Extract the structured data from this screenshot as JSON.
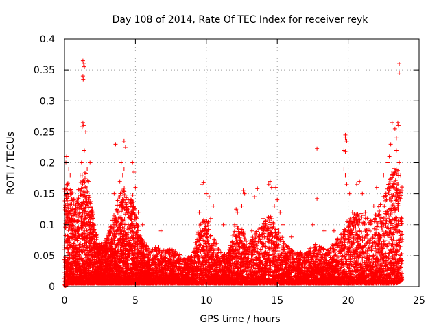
{
  "chart_data": {
    "type": "scatter",
    "title": "Day 108 of 2014, Rate Of TEC Index for receiver reyk",
    "xlabel": "GPS time / hours",
    "ylabel": "ROTI / TECUs",
    "xlim": [
      0,
      25
    ],
    "ylim": [
      0,
      0.4
    ],
    "xticks": [
      0,
      5,
      10,
      15,
      20,
      25
    ],
    "xtick_labels": [
      "0",
      "5",
      "10",
      "15",
      "20",
      "25"
    ],
    "yticks": [
      0,
      0.05,
      0.1,
      0.15,
      0.2,
      0.25,
      0.3,
      0.35,
      0.4
    ],
    "ytick_labels": [
      "0",
      "0.05",
      "0.1",
      "0.15",
      "0.2",
      "0.25",
      "0.3",
      "0.35",
      "0.4"
    ],
    "grid": true,
    "marker": "+",
    "color": "#ff0000",
    "series": [
      {
        "name": "ROTI",
        "points": [
          [
            0.1,
            0.2
          ],
          [
            0.15,
            0.21
          ],
          [
            0.3,
            0.19
          ],
          [
            0.4,
            0.18
          ],
          [
            0.5,
            0.15
          ],
          [
            1.3,
            0.365
          ],
          [
            1.35,
            0.36
          ],
          [
            1.4,
            0.355
          ],
          [
            1.3,
            0.34
          ],
          [
            1.32,
            0.335
          ],
          [
            1.3,
            0.265
          ],
          [
            1.35,
            0.26
          ],
          [
            1.25,
            0.258
          ],
          [
            1.5,
            0.25
          ],
          [
            1.4,
            0.22
          ],
          [
            1.2,
            0.2
          ],
          [
            1.6,
            0.19
          ],
          [
            1.8,
            0.2
          ],
          [
            1.1,
            0.18
          ],
          [
            1.7,
            0.17
          ],
          [
            3.6,
            0.23
          ],
          [
            4.2,
            0.235
          ],
          [
            4.3,
            0.225
          ],
          [
            4.0,
            0.2
          ],
          [
            4.2,
            0.19
          ],
          [
            4.1,
            0.18
          ],
          [
            3.9,
            0.17
          ],
          [
            4.8,
            0.2
          ],
          [
            4.9,
            0.185
          ],
          [
            5.0,
            0.16
          ],
          [
            3.5,
            0.15
          ],
          [
            4.5,
            0.14
          ],
          [
            5.2,
            0.12
          ],
          [
            5.5,
            0.1
          ],
          [
            6.8,
            0.09
          ],
          [
            9.8,
            0.168
          ],
          [
            9.7,
            0.165
          ],
          [
            10.2,
            0.145
          ],
          [
            10.0,
            0.15
          ],
          [
            9.5,
            0.12
          ],
          [
            10.5,
            0.13
          ],
          [
            10.3,
            0.11
          ],
          [
            11.2,
            0.1
          ],
          [
            9.9,
            0.09
          ],
          [
            12.1,
            0.125
          ],
          [
            12.2,
            0.12
          ],
          [
            12.6,
            0.155
          ],
          [
            12.7,
            0.15
          ],
          [
            12.5,
            0.13
          ],
          [
            13.4,
            0.145
          ],
          [
            13.6,
            0.158
          ],
          [
            14.5,
            0.17
          ],
          [
            14.4,
            0.165
          ],
          [
            14.6,
            0.16
          ],
          [
            14.9,
            0.16
          ],
          [
            15.0,
            0.14
          ],
          [
            14.8,
            0.13
          ],
          [
            15.2,
            0.12
          ],
          [
            15.4,
            0.1
          ],
          [
            12.0,
            0.1
          ],
          [
            13.2,
            0.09
          ],
          [
            14.0,
            0.11
          ],
          [
            16.0,
            0.08
          ],
          [
            17.8,
            0.223
          ],
          [
            17.8,
            0.142
          ],
          [
            17.5,
            0.1
          ],
          [
            18.3,
            0.09
          ],
          [
            19.0,
            0.09
          ],
          [
            19.8,
            0.245
          ],
          [
            19.8,
            0.24
          ],
          [
            19.9,
            0.235
          ],
          [
            19.7,
            0.22
          ],
          [
            19.8,
            0.218
          ],
          [
            19.7,
            0.19
          ],
          [
            19.8,
            0.18
          ],
          [
            19.9,
            0.165
          ],
          [
            20.1,
            0.15
          ],
          [
            20.3,
            0.12
          ],
          [
            20.6,
            0.165
          ],
          [
            20.8,
            0.17
          ],
          [
            21.0,
            0.15
          ],
          [
            21.2,
            0.12
          ],
          [
            22.0,
            0.16
          ],
          [
            22.5,
            0.18
          ],
          [
            22.8,
            0.2
          ],
          [
            22.9,
            0.21
          ],
          [
            23.0,
            0.23
          ],
          [
            23.1,
            0.265
          ],
          [
            23.3,
            0.255
          ],
          [
            23.4,
            0.24
          ],
          [
            23.5,
            0.265
          ],
          [
            23.55,
            0.26
          ],
          [
            23.6,
            0.36
          ],
          [
            23.6,
            0.345
          ],
          [
            23.4,
            0.22
          ],
          [
            23.6,
            0.2
          ],
          [
            23.7,
            0.18
          ],
          [
            23.2,
            0.16
          ],
          [
            23.5,
            0.15
          ],
          [
            22.7,
            0.14
          ],
          [
            21.8,
            0.13
          ],
          [
            22.3,
            0.11
          ]
        ]
      }
    ],
    "dense_band": [
      [
        0.0,
        0.0,
        0.16
      ],
      [
        0.3,
        0.005,
        0.17
      ],
      [
        0.6,
        0.005,
        0.15
      ],
      [
        0.9,
        0.005,
        0.15
      ],
      [
        1.2,
        0.005,
        0.18
      ],
      [
        1.5,
        0.005,
        0.19
      ],
      [
        1.8,
        0.005,
        0.15
      ],
      [
        2.1,
        0.005,
        0.1
      ],
      [
        2.4,
        0.005,
        0.07
      ],
      [
        2.7,
        0.005,
        0.07
      ],
      [
        3.0,
        0.005,
        0.08
      ],
      [
        3.3,
        0.005,
        0.1
      ],
      [
        3.6,
        0.005,
        0.13
      ],
      [
        3.9,
        0.005,
        0.15
      ],
      [
        4.2,
        0.005,
        0.16
      ],
      [
        4.5,
        0.005,
        0.13
      ],
      [
        4.8,
        0.005,
        0.15
      ],
      [
        5.1,
        0.005,
        0.11
      ],
      [
        5.4,
        0.005,
        0.08
      ],
      [
        5.7,
        0.005,
        0.07
      ],
      [
        6.0,
        0.005,
        0.06
      ],
      [
        6.5,
        0.005,
        0.065
      ],
      [
        7.0,
        0.005,
        0.06
      ],
      [
        7.5,
        0.005,
        0.06
      ],
      [
        8.0,
        0.005,
        0.055
      ],
      [
        8.5,
        0.005,
        0.045
      ],
      [
        9.0,
        0.005,
        0.05
      ],
      [
        9.5,
        0.005,
        0.1
      ],
      [
        10.0,
        0.005,
        0.12
      ],
      [
        10.5,
        0.005,
        0.08
      ],
      [
        11.0,
        0.005,
        0.06
      ],
      [
        11.5,
        0.005,
        0.05
      ],
      [
        12.0,
        0.005,
        0.1
      ],
      [
        12.5,
        0.005,
        0.1
      ],
      [
        13.0,
        0.005,
        0.07
      ],
      [
        13.5,
        0.005,
        0.09
      ],
      [
        14.0,
        0.005,
        0.1
      ],
      [
        14.5,
        0.005,
        0.12
      ],
      [
        15.0,
        0.005,
        0.1
      ],
      [
        15.5,
        0.005,
        0.07
      ],
      [
        16.0,
        0.005,
        0.06
      ],
      [
        16.5,
        0.005,
        0.055
      ],
      [
        17.0,
        0.005,
        0.055
      ],
      [
        17.5,
        0.005,
        0.07
      ],
      [
        18.0,
        0.005,
        0.065
      ],
      [
        18.5,
        0.005,
        0.06
      ],
      [
        19.0,
        0.005,
        0.07
      ],
      [
        19.5,
        0.005,
        0.09
      ],
      [
        20.0,
        0.005,
        0.11
      ],
      [
        20.5,
        0.005,
        0.12
      ],
      [
        21.0,
        0.005,
        0.12
      ],
      [
        21.5,
        0.005,
        0.11
      ],
      [
        22.0,
        0.005,
        0.12
      ],
      [
        22.5,
        0.005,
        0.15
      ],
      [
        23.0,
        0.005,
        0.18
      ],
      [
        23.4,
        0.005,
        0.2
      ],
      [
        23.8,
        0.01,
        0.16
      ]
    ]
  }
}
